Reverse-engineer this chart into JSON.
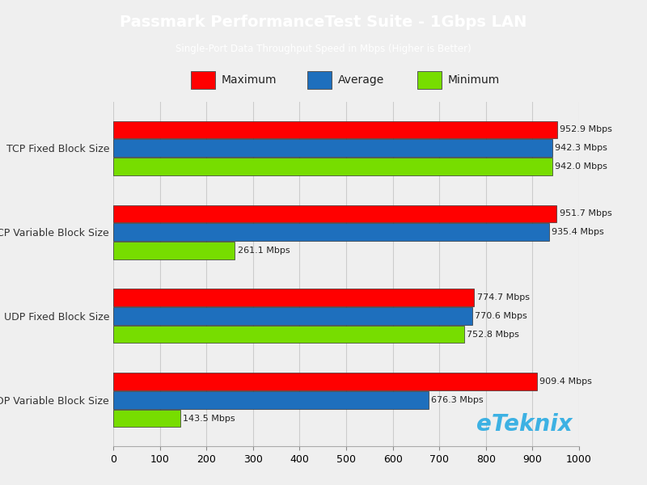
{
  "title": "Passmark PerformanceTest Suite - 1Gbps LAN",
  "subtitle": "Single-Port Data Throughput Speed in Mbps (Higher is Better)",
  "title_color": "#ffffff",
  "header_bg": "#29abe2",
  "plot_bg": "#efefef",
  "fig_bg": "#efefef",
  "categories": [
    "TCP Fixed Block Size",
    "TCP Variable Block Size",
    "UDP Fixed Block Size",
    "UDP Variable Block Size"
  ],
  "series_order": [
    "Maximum",
    "Average",
    "Minimum"
  ],
  "series": {
    "Maximum": {
      "values": [
        952.9,
        951.7,
        774.7,
        909.4
      ],
      "color": "#ff0000"
    },
    "Average": {
      "values": [
        942.3,
        935.4,
        770.6,
        676.3
      ],
      "color": "#1e6fbd"
    },
    "Minimum": {
      "values": [
        942.0,
        261.1,
        752.8,
        143.5
      ],
      "color": "#77dd00"
    }
  },
  "xlim": [
    0,
    1000
  ],
  "xticks": [
    0,
    100,
    200,
    300,
    400,
    500,
    600,
    700,
    800,
    900,
    1000
  ],
  "bar_height": 0.22,
  "label_fontsize": 8,
  "ytick_fontsize": 9,
  "xtick_fontsize": 9,
  "legend_fontsize": 10,
  "watermark": "eTeknix",
  "watermark_color": "#29abe2",
  "grid_color": "#cccccc"
}
